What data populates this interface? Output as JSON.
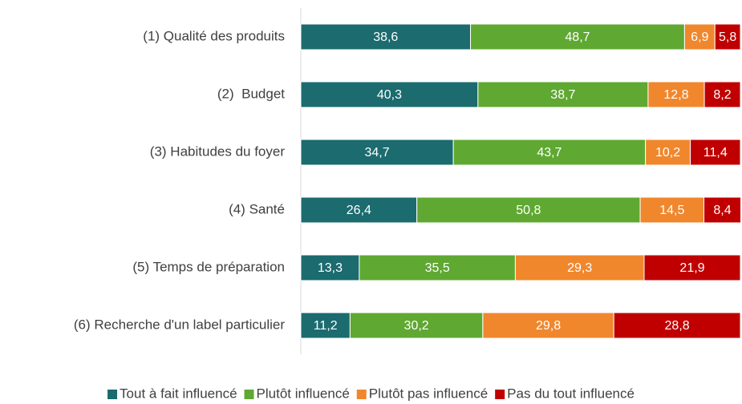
{
  "chart_data": {
    "type": "stacked-bar-horizontal",
    "categories": [
      "(1) Qualité des produits",
      "(2)  Budget",
      "(3) Habitudes du foyer",
      "(4) Santé",
      "(5) Temps de préparation",
      "(6) Recherche d'un label particulier"
    ],
    "xlim": [
      0,
      100
    ],
    "legend": "bottom",
    "series": [
      {
        "name": "Tout à fait influencé",
        "color": "#1b6b6f",
        "values": [
          38.6,
          40.3,
          34.7,
          26.4,
          13.3,
          11.2
        ],
        "value_labels": [
          "38,6",
          "40,3",
          "34,7",
          "26,4",
          "13,3",
          "11,2"
        ]
      },
      {
        "name": "Plutôt influencé",
        "color": "#5fa832",
        "values": [
          48.7,
          38.7,
          43.7,
          50.8,
          35.5,
          30.2
        ],
        "value_labels": [
          "48,7",
          "38,7",
          "43,7",
          "50,8",
          "35,5",
          "30,2"
        ]
      },
      {
        "name": "Plutôt pas influencé",
        "color": "#f0872d",
        "values": [
          6.9,
          12.8,
          10.2,
          14.5,
          29.3,
          29.8
        ],
        "value_labels": [
          "6,9",
          "12,8",
          "10,2",
          "14,5",
          "29,3",
          "29,8"
        ]
      },
      {
        "name": "Pas du tout influencé",
        "color": "#c00000",
        "values": [
          5.8,
          8.2,
          11.4,
          8.4,
          21.9,
          28.8
        ],
        "value_labels": [
          "5,8",
          "8,2",
          "11,4",
          "8,4",
          "21,9",
          "28,8"
        ]
      }
    ]
  }
}
